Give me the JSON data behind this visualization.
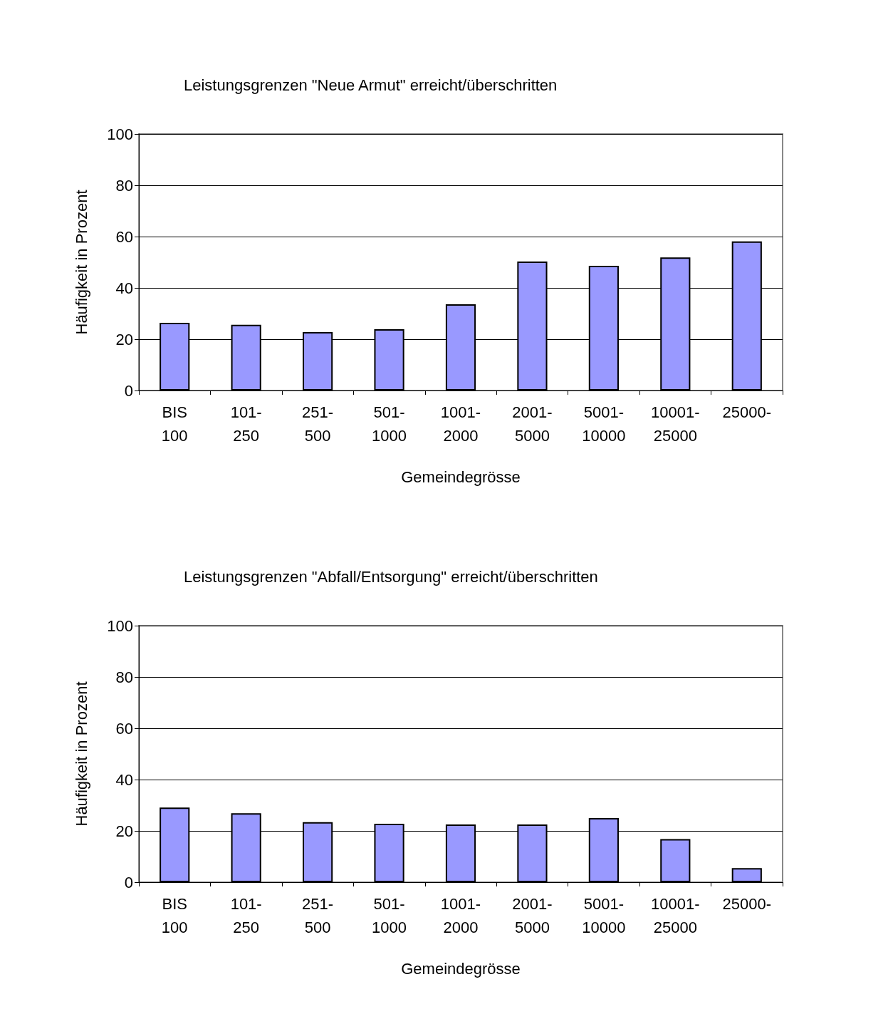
{
  "chart_data": [
    {
      "type": "bar",
      "title": "Leistungsgrenzen \"Neue Armut\" erreicht/überschritten",
      "xlabel": "Gemeindegrösse",
      "ylabel": "Häufigkeit in Prozent",
      "categories": [
        "BIS\n100",
        "101-\n250",
        "251-\n500",
        "501-\n1000",
        "1001-\n2000",
        "2001-\n5000",
        "5001-\n10000",
        "10001-\n25000",
        "25000-"
      ],
      "values": [
        26.4,
        25.6,
        22.8,
        23.9,
        33.6,
        50.3,
        48.6,
        51.9,
        58.1
      ],
      "color": "#9999ff",
      "ylim": [
        0,
        100
      ],
      "yticks": [
        0,
        20,
        40,
        60,
        80,
        100
      ],
      "grid": "y"
    },
    {
      "type": "bar",
      "title": "Leistungsgrenzen \"Abfall/Entsorgung\" erreicht/überschritten",
      "xlabel": "Gemeindegrösse",
      "ylabel": "Häufigkeit in Prozent",
      "categories": [
        "BIS\n100",
        "101-\n250",
        "251-\n500",
        "501-\n1000",
        "1001-\n2000",
        "2001-\n5000",
        "5001-\n10000",
        "10001-\n25000",
        "25000-"
      ],
      "values": [
        29.1,
        26.9,
        23.4,
        22.8,
        22.5,
        22.5,
        25.0,
        16.8,
        5.5
      ],
      "color": "#9999ff",
      "ylim": [
        0,
        100
      ],
      "yticks": [
        0,
        20,
        40,
        60,
        80,
        100
      ],
      "grid": "y"
    }
  ]
}
